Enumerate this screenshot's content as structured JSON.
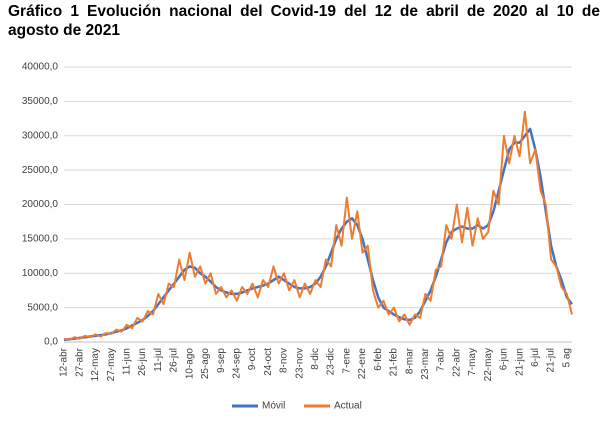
{
  "chart_data": {
    "type": "line",
    "title": "Gráfico 1 Evolución nacional del Covid-19 del 12 de abril de 2020 al 10 de agosto de 2021",
    "categories": [
      "12-abr",
      null,
      null,
      "27-abr",
      null,
      null,
      "12-may",
      null,
      null,
      "27-may",
      null,
      null,
      "11-jun",
      null,
      null,
      "26-jun",
      null,
      null,
      "11-jul",
      null,
      null,
      "26-jul",
      null,
      null,
      "10-ago",
      null,
      null,
      "25-ago",
      null,
      null,
      "9-sep",
      null,
      null,
      "24-sep",
      null,
      null,
      "9-oct",
      null,
      null,
      "24-oct",
      null,
      null,
      "8-nov",
      null,
      null,
      "23-nov",
      null,
      null,
      "8-dic",
      null,
      null,
      "23-dic",
      null,
      null,
      "7-ene",
      null,
      null,
      "22-ene",
      null,
      null,
      "6-feb",
      null,
      null,
      "21-feb",
      null,
      null,
      "8-mar",
      null,
      null,
      "23-mar",
      null,
      null,
      "7-abr",
      null,
      null,
      "22-abr",
      null,
      null,
      "7-may",
      null,
      null,
      "22-may",
      null,
      null,
      "6-jun",
      null,
      null,
      "21-jun",
      null,
      null,
      "6-jul",
      null,
      null,
      "21-jul",
      null,
      null,
      "5 ag",
      null
    ],
    "series": [
      {
        "name": "Móvil",
        "color": "#4472c4",
        "values": [
          300,
          400,
          500,
          600,
          700,
          800,
          900,
          1000,
          1100,
          1300,
          1500,
          1700,
          2000,
          2400,
          2800,
          3200,
          3800,
          4500,
          5500,
          6500,
          7500,
          8500,
          9500,
          10500,
          11000,
          10800,
          10000,
          9500,
          8800,
          8000,
          7500,
          7200,
          7000,
          7000,
          7200,
          7500,
          7800,
          8000,
          8200,
          8500,
          9000,
          9500,
          9000,
          8500,
          8000,
          7800,
          7800,
          8000,
          8500,
          9500,
          11000,
          13000,
          15000,
          16500,
          17500,
          18000,
          17000,
          15000,
          12000,
          9000,
          6500,
          5000,
          4500,
          4000,
          3600,
          3300,
          3200,
          3500,
          4500,
          6000,
          7500,
          9500,
          12000,
          14500,
          16000,
          16500,
          16800,
          16500,
          16500,
          17000,
          16500,
          17000,
          19000,
          22000,
          25000,
          28000,
          29000,
          29000,
          30000,
          31000,
          28000,
          24000,
          19000,
          14000,
          11000,
          9000,
          6500,
          5500
        ]
      },
      {
        "name": "Actual",
        "color": "#ed7d31",
        "values": [
          500,
          300,
          700,
          500,
          900,
          700,
          1100,
          800,
          1300,
          1200,
          1800,
          1500,
          2500,
          2000,
          3500,
          3000,
          4500,
          4000,
          7000,
          5500,
          8500,
          8000,
          12000,
          9000,
          13000,
          9500,
          11000,
          8500,
          10000,
          7000,
          8000,
          6500,
          7500,
          6000,
          8000,
          7000,
          8500,
          6500,
          9000,
          8000,
          11000,
          8500,
          10000,
          7500,
          9000,
          6500,
          8500,
          7000,
          9000,
          8000,
          12000,
          11000,
          17000,
          14000,
          21000,
          15000,
          19000,
          13000,
          14000,
          7500,
          5000,
          6000,
          4000,
          5000,
          3000,
          4000,
          2500,
          4000,
          3500,
          7000,
          6000,
          10500,
          11000,
          17000,
          15000,
          20000,
          14500,
          19500,
          14000,
          18000,
          15000,
          16000,
          22000,
          20000,
          30000,
          26000,
          30000,
          27000,
          33500,
          26000,
          28000,
          22000,
          20000,
          12000,
          11000,
          8000,
          7000,
          4000
        ]
      }
    ],
    "ylim": [
      0,
      40000
    ],
    "yticks": [
      {
        "value": 0,
        "label": "0,0"
      },
      {
        "value": 5000,
        "label": "5000,0"
      },
      {
        "value": 10000,
        "label": "10000,0"
      },
      {
        "value": 15000,
        "label": "15000,0"
      },
      {
        "value": 20000,
        "label": "20000,0"
      },
      {
        "value": 25000,
        "label": "25000,0"
      },
      {
        "value": 30000,
        "label": "30000,0"
      },
      {
        "value": 35000,
        "label": "35000,0"
      },
      {
        "value": 40000,
        "label": "40000,0"
      }
    ],
    "grid": true,
    "legend": "bottom"
  }
}
